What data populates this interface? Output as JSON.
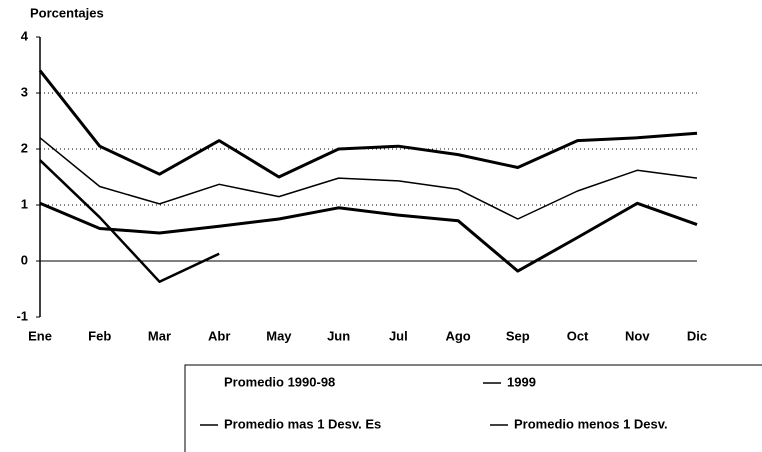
{
  "chart_data": {
    "type": "line",
    "y_label": "Porcentajes",
    "categories": [
      "Ene",
      "Feb",
      "Mar",
      "Abr",
      "May",
      "Jun",
      "Jul",
      "Ago",
      "Sep",
      "Oct",
      "Nov",
      "Dic"
    ],
    "series": [
      {
        "name": "Promedio 1990-98",
        "color": "#000000",
        "line_width": 1.5,
        "values": [
          2.2,
          1.33,
          1.02,
          1.37,
          1.15,
          1.48,
          1.43,
          1.28,
          0.75,
          1.25,
          1.62,
          1.48
        ]
      },
      {
        "name": "1999",
        "color": "#000000",
        "line_width": 2.5,
        "values": [
          1.8,
          0.78,
          -0.37,
          0.13,
          null,
          null,
          null,
          null,
          null,
          null,
          null,
          null
        ]
      },
      {
        "name": "Promedio mas 1 Desv. Es",
        "color": "#000000",
        "line_width": 3,
        "values": [
          3.4,
          2.05,
          1.55,
          2.15,
          1.5,
          2.0,
          2.05,
          1.9,
          1.67,
          2.15,
          2.2,
          2.28
        ]
      },
      {
        "name": "Promedio menos 1 Desv.",
        "color": "#000000",
        "line_width": 3,
        "values": [
          1.03,
          0.58,
          0.5,
          0.62,
          0.75,
          0.95,
          0.82,
          0.72,
          -0.18,
          0.42,
          1.03,
          0.65
        ]
      }
    ],
    "ylim": [
      -1,
      4
    ],
    "yticks": [
      -1,
      0,
      1,
      2,
      3,
      4
    ],
    "grid": true
  }
}
